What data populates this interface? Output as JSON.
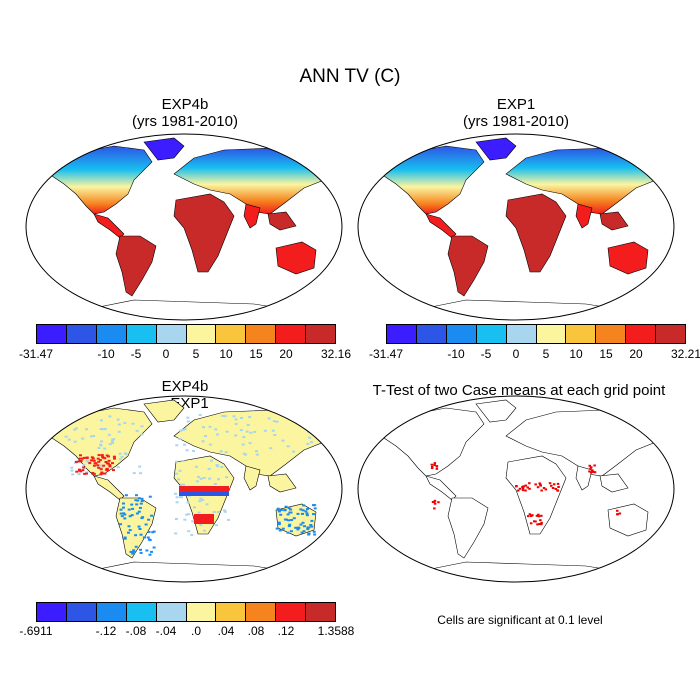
{
  "figure": {
    "title": "ANN TV (C)"
  },
  "colors": [
    "#3b1dff",
    "#2d55e6",
    "#1a8bf0",
    "#18bff0",
    "#a7d6ee",
    "#fbf5a0",
    "#f9c53d",
    "#f5841f",
    "#f31d1d",
    "#c82a2a"
  ],
  "panels": {
    "top_left": {
      "title_line1": "EXP4b",
      "title_line2": "(yrs 1981-2010)",
      "colorbar_labels": [
        "-31.47",
        "-10",
        "-5",
        "0",
        "5",
        "10",
        "15",
        "20",
        "32.16"
      ]
    },
    "top_right": {
      "title_line1": "EXP1",
      "title_line2": "(yrs 1981-2010)",
      "colorbar_labels": [
        "-31.47",
        "-10",
        "-5",
        "0",
        "5",
        "10",
        "15",
        "20",
        "32.21"
      ]
    },
    "bottom_left": {
      "title_line1": "EXP4b",
      "title_line2": "- EXP1",
      "colorbar_labels": [
        "-.6911",
        "-.12",
        "-.08",
        "-.04",
        ".0",
        ".04",
        ".08",
        ".12",
        "1.3588"
      ]
    },
    "bottom_right": {
      "title": "T-Test of two Case means at each grid point",
      "note": "Cells are significant at 0.1 level"
    }
  }
}
